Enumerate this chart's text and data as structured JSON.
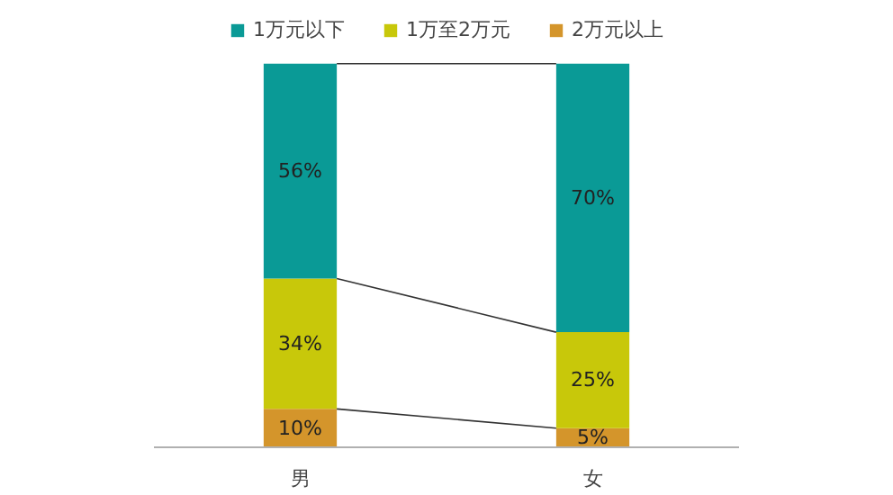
{
  "chart_data": {
    "type": "bar",
    "stacked": true,
    "legend": "top",
    "categories": [
      "男",
      "女"
    ],
    "series": [
      {
        "name": "2万元以上",
        "color": "#d4952b",
        "values": [
          10,
          5
        ],
        "value_labels": [
          "10%",
          "5%"
        ]
      },
      {
        "name": "1万至2万元",
        "color": "#c8c80a",
        "values": [
          34,
          25
        ],
        "value_labels": [
          "34%",
          "25%"
        ]
      },
      {
        "name": "1万元以下",
        "color": "#0a9a96",
        "values": [
          56,
          70
        ],
        "value_labels": [
          "56%",
          "70%"
        ]
      }
    ]
  }
}
